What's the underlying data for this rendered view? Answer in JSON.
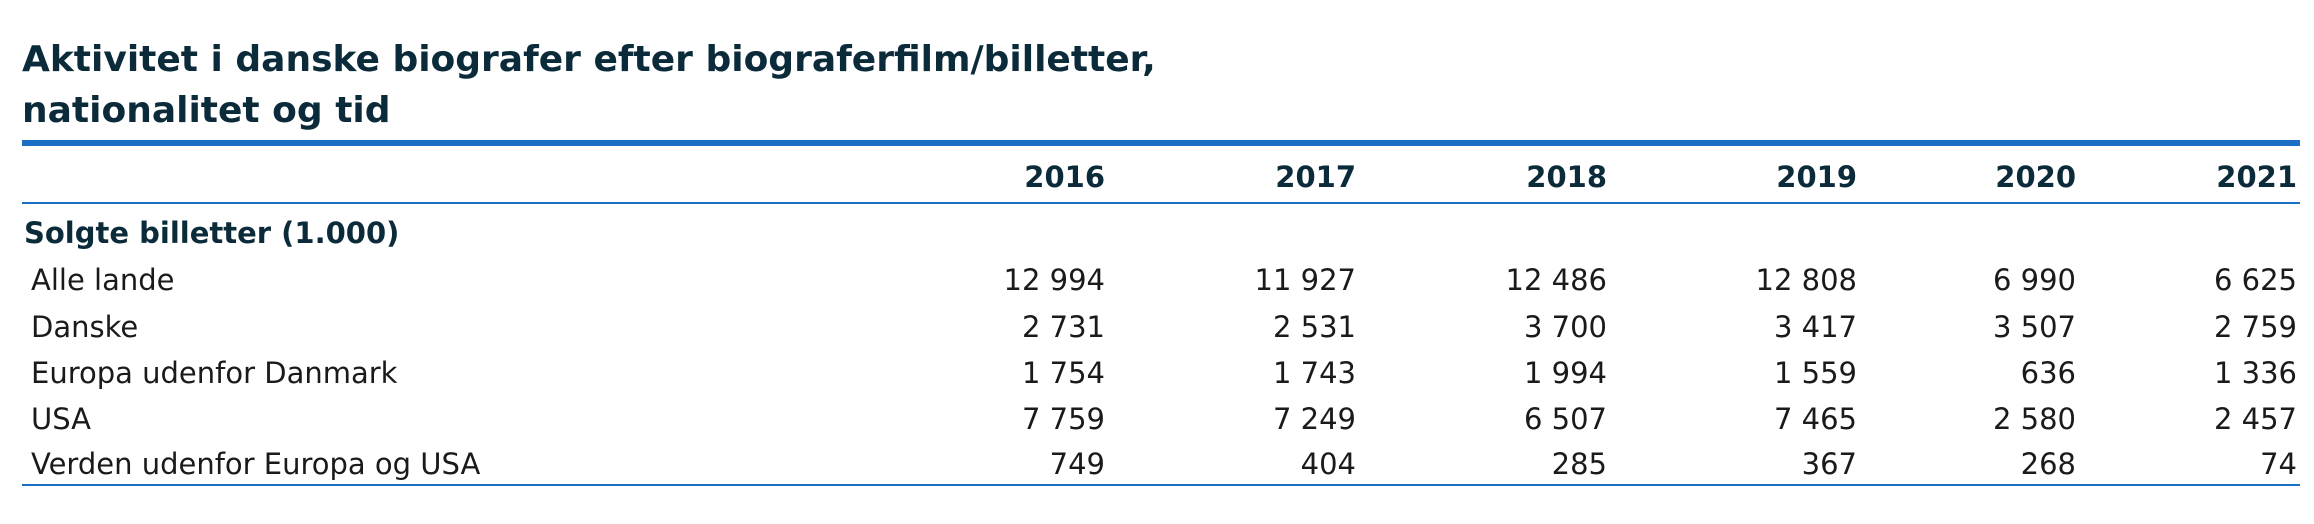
{
  "title": {
    "line1": "Aktivitet i danske biografer efter biograferfilm/billetter,",
    "line2": "nationalitet og tid"
  },
  "table": {
    "years": [
      "2016",
      "2017",
      "2018",
      "2019",
      "2020",
      "2021"
    ],
    "section_label": "Solgte billetter (1.000)",
    "rows": [
      {
        "label": "Alle lande",
        "values": [
          "12 994",
          "11 927",
          "12 486",
          "12 808",
          "6 990",
          "6 625"
        ]
      },
      {
        "label": "Danske",
        "values": [
          "2 731",
          "2 531",
          "3 700",
          "3 417",
          "3 507",
          "2 759"
        ]
      },
      {
        "label": "Europa udenfor Danmark",
        "values": [
          "1 754",
          "1 743",
          "1 994",
          "1 559",
          "636",
          "1 336"
        ]
      },
      {
        "label": "USA",
        "values": [
          "7 759",
          "7 249",
          "6 507",
          "7 465",
          "2 580",
          "2 457"
        ]
      },
      {
        "label": "Verden udenfor Europa og USA",
        "values": [
          "749",
          "404",
          "285",
          "367",
          "268",
          "74"
        ]
      }
    ]
  },
  "colors": {
    "accent": "#1a6fc4",
    "heading": "#0b2b3a"
  }
}
